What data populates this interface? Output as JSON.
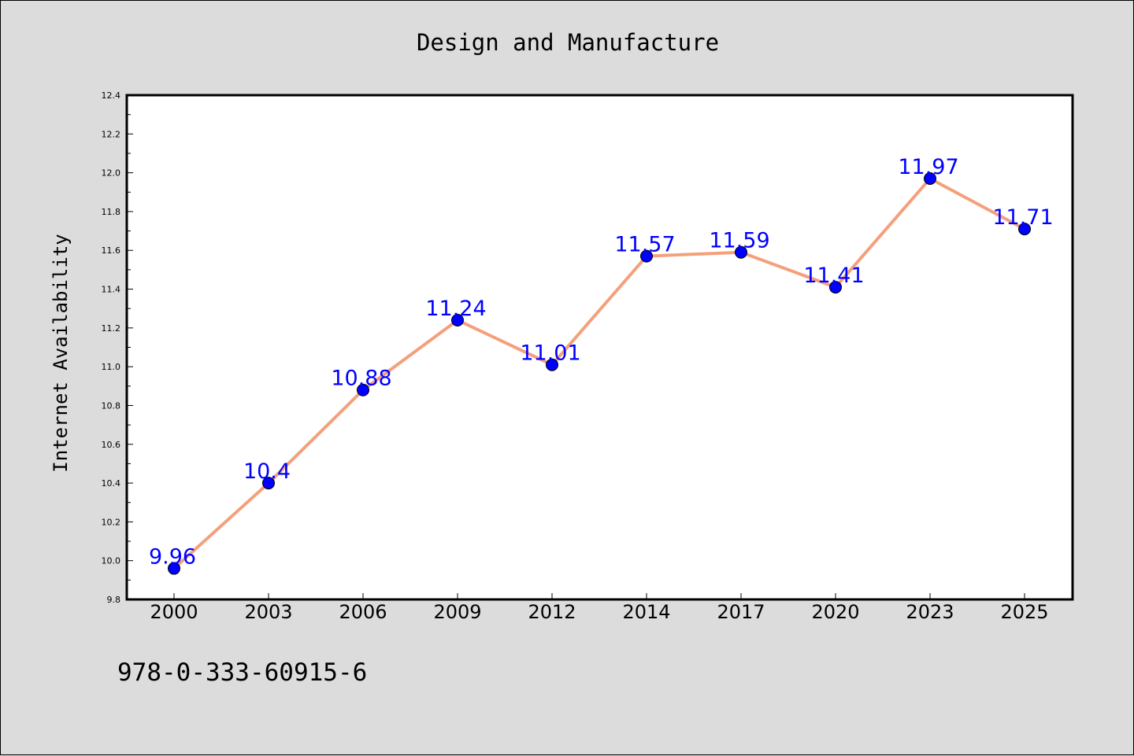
{
  "chart_data": {
    "type": "line",
    "title": "Design and Manufacture",
    "xlabel": "",
    "ylabel": "Internet Availability",
    "categories": [
      "2000",
      "2003",
      "2006",
      "2009",
      "2012",
      "2014",
      "2017",
      "2020",
      "2023",
      "2025"
    ],
    "series": [
      {
        "values": [
          9.96,
          10.4,
          10.88,
          11.24,
          11.01,
          11.57,
          11.59,
          11.41,
          11.97,
          11.71
        ],
        "data_labels": [
          "9.96",
          "10.4",
          "10.88",
          "11.24",
          "11.01",
          "11.57",
          "11.59",
          "11.41",
          "11.97",
          "11.71"
        ],
        "line_color": "#f4a07c",
        "marker_color": "#0000ff"
      }
    ],
    "ylim": [
      9.8,
      12.4
    ],
    "yticks": [
      "9.8",
      "10.0",
      "10.2",
      "10.4",
      "10.6",
      "10.8",
      "11.0",
      "11.2",
      "11.4",
      "11.6",
      "11.8",
      "12.0",
      "12.2",
      "12.4"
    ],
    "grid": false,
    "legend": "none",
    "background_color": "#dcdcdc",
    "plot_background": "#ffffff",
    "label_color": "#0000ff"
  },
  "footnote": "978-0-333-60915-6"
}
